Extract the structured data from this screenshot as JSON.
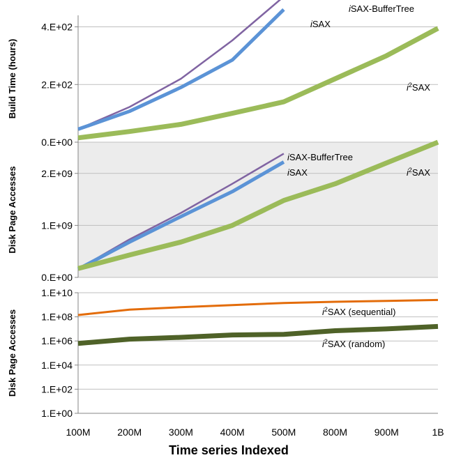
{
  "x_axis": {
    "label": "Time series Indexed",
    "categories": [
      "100M",
      "200M",
      "300M",
      "400M",
      "500M",
      "800M",
      "900M",
      "1B"
    ]
  },
  "colors": {
    "isax": "#5b93d6",
    "isax_buffertree": "#8064a2",
    "i2sax": "#9bbb59",
    "i2sax_sequential": "#e36c0a",
    "i2sax_random": "#4f6228",
    "panel_bg": "#ececec",
    "grid": "#bfbfbf"
  },
  "chart_data": [
    {
      "type": "line",
      "ylabel": "Build Time (hours)",
      "ylim": [
        0,
        440
      ],
      "yticks": [
        {
          "value": 0,
          "label": "0.E+00"
        },
        {
          "value": 200,
          "label": "2.E+02"
        },
        {
          "value": 400,
          "label": "4.E+02"
        }
      ],
      "background": "white",
      "grid": true,
      "series": [
        {
          "name": "iSAX-BufferTree",
          "label_prefix": "i",
          "label_sup": "",
          "label_rest": "SAX-BufferTree",
          "color_key": "isax_buffertree",
          "width": 2.5,
          "values": [
            45,
            122,
            220,
            353,
            505
          ]
        },
        {
          "name": "iSAX",
          "label_prefix": "i",
          "label_sup": "",
          "label_rest": "SAX",
          "color_key": "isax",
          "width": 5,
          "values": [
            45,
            107,
            190,
            285,
            460
          ]
        },
        {
          "name": "i2SAX",
          "label_prefix": "i",
          "label_sup": "2",
          "label_rest": "SAX",
          "color_key": "i2sax",
          "width": 7,
          "values": [
            15,
            37,
            62,
            100,
            140,
            220,
            300,
            395
          ]
        }
      ]
    },
    {
      "type": "line",
      "ylabel": "Disk Page Accesses",
      "ylim": [
        0,
        2600000000
      ],
      "yticks": [
        {
          "value": 0,
          "label": "0.E+00"
        },
        {
          "value": 1000000000,
          "label": "1.E+09"
        },
        {
          "value": 2000000000,
          "label": "2.E+09"
        }
      ],
      "background": "grey",
      "grid": true,
      "series": [
        {
          "name": "iSAX-BufferTree",
          "label_prefix": "i",
          "label_sup": "",
          "label_rest": "SAX-BufferTree",
          "color_key": "isax_buffertree",
          "width": 2.5,
          "values": [
            160000000,
            730000000,
            1240000000,
            1800000000,
            2380000000
          ]
        },
        {
          "name": "iSAX",
          "label_prefix": "i",
          "label_sup": "",
          "label_rest": "SAX",
          "color_key": "isax",
          "width": 5,
          "values": [
            160000000,
            680000000,
            1170000000,
            1650000000,
            2220000000
          ]
        },
        {
          "name": "i2SAX",
          "label_prefix": "i",
          "label_sup": "2",
          "label_rest": "SAX",
          "color_key": "i2sax",
          "width": 7,
          "values": [
            170000000,
            430000000,
            680000000,
            1000000000,
            1480000000,
            1800000000,
            2200000000,
            2600000000
          ]
        }
      ]
    },
    {
      "type": "line",
      "ylabel": "Disk Page Accesses",
      "yscale": "log",
      "ylim_exp": [
        0,
        10
      ],
      "yticks": [
        {
          "value": 0,
          "label": "1.E+00"
        },
        {
          "value": 2,
          "label": "1.E+02"
        },
        {
          "value": 4,
          "label": "1.E+04"
        },
        {
          "value": 6,
          "label": "1.E+06"
        },
        {
          "value": 8,
          "label": "1.E+08"
        },
        {
          "value": 10,
          "label": "1.E+10"
        }
      ],
      "background": "white",
      "grid": true,
      "series": [
        {
          "name": "i2SAX (sequential)",
          "label_prefix": "i",
          "label_sup": "2",
          "label_rest": "SAX (sequential)",
          "color_key": "i2sax_sequential",
          "width": 3,
          "values_exp": [
            8.15,
            8.6,
            8.8,
            8.97,
            9.15,
            9.25,
            9.32,
            9.4
          ]
        },
        {
          "name": "i2SAX (random)",
          "label_prefix": "i",
          "label_sup": "2",
          "label_rest": "SAX (random)",
          "color_key": "i2sax_random",
          "width": 7,
          "values_exp": [
            5.8,
            6.15,
            6.3,
            6.5,
            6.55,
            6.85,
            7.0,
            7.2
          ]
        }
      ]
    }
  ]
}
